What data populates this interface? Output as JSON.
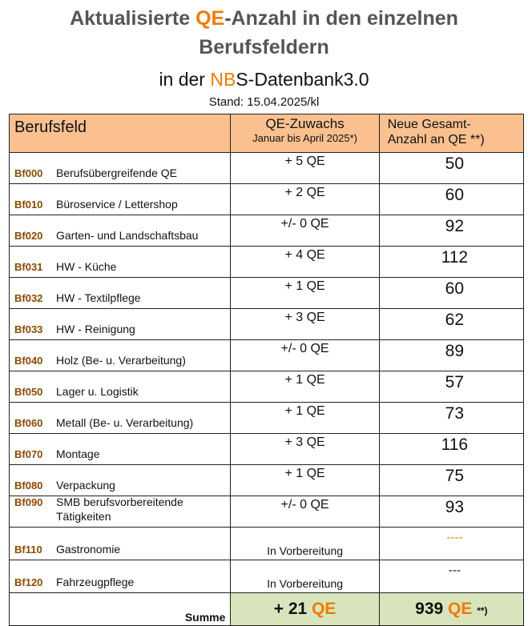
{
  "title": {
    "line1_a": "Aktualisierte ",
    "line1_b": "QE",
    "line1_c": "-Anzahl in den einzelnen",
    "line2": "Berufsfeldern",
    "line3_a": "in der ",
    "line3_b": "NB",
    "line3_c": "S-Datenbank3.0",
    "stand": "Stand: 15.04.2025/kl"
  },
  "table": {
    "headers": {
      "col1": "Berufsfeld",
      "col2_main": "QE-Zuwachs",
      "col2_sub": "Januar bis April 2025*)",
      "col3_line1": "Neue Gesamt-",
      "col3_line2": "Anzahl an QE **)"
    },
    "rows": [
      {
        "code": "Bf000",
        "label": "Berufsübergreifende QE",
        "zuwachs": "+ 5 QE",
        "gesamt": "50"
      },
      {
        "code": "Bf010",
        "label": "Büroservice / Lettershop",
        "zuwachs": "+ 2 QE",
        "gesamt": "60"
      },
      {
        "code": "Bf020",
        "label": "Garten- und Landschaftsbau",
        "zuwachs": "+/- 0 QE",
        "gesamt": "92"
      },
      {
        "code": "Bf031",
        "label": "HW - Küche",
        "zuwachs": "+ 4 QE",
        "gesamt": "112"
      },
      {
        "code": "Bf032",
        "label": "HW - Textilpflege",
        "zuwachs": "+ 1 QE",
        "gesamt": "60"
      },
      {
        "code": "Bf033",
        "label": "HW - Reinigung",
        "zuwachs": "+ 3 QE",
        "gesamt": "62"
      },
      {
        "code": "Bf040",
        "label": "Holz  (Be- u. Verarbeitung)",
        "zuwachs": "+/- 0 QE",
        "gesamt": "89"
      },
      {
        "code": "Bf050",
        "label": "Lager u. Logistik",
        "zuwachs": "+ 1 QE",
        "gesamt": "57"
      },
      {
        "code": "Bf060",
        "label": "Metall  (Be- u. Verarbeitung)",
        "zuwachs": "+ 1 QE",
        "gesamt": "73"
      },
      {
        "code": "Bf070",
        "label": "Montage",
        "zuwachs": "+ 3 QE",
        "gesamt": "116"
      },
      {
        "code": "Bf080",
        "label": "Verpackung",
        "zuwachs": "+ 1 QE",
        "gesamt": "75"
      },
      {
        "code": "Bf090",
        "label": "SMB berufsvorbereitende",
        "label2": "Tätigkeiten",
        "zuwachs": "+/- 0 QE",
        "gesamt": "93"
      },
      {
        "code": "Bf110",
        "label": "Gastronomie",
        "zuwachs": "In Vorbereitung",
        "gesamt": "----"
      },
      {
        "code": "Bf120",
        "label": "Fahrzeugpflege",
        "zuwachs": "In Vorbereitung",
        "gesamt": "---"
      }
    ],
    "summe": {
      "label": "Summe",
      "zuwachs_num": "+ 21 ",
      "zuwachs_unit": "QE",
      "gesamt_num": "939 ",
      "gesamt_unit": "QE",
      "gesamt_note": "**)"
    }
  },
  "colors": {
    "accent_orange": "#f07b00",
    "header_bg": "#fac090",
    "sum_bg": "#d8e4bc",
    "code_brown": "#8a4a00"
  }
}
